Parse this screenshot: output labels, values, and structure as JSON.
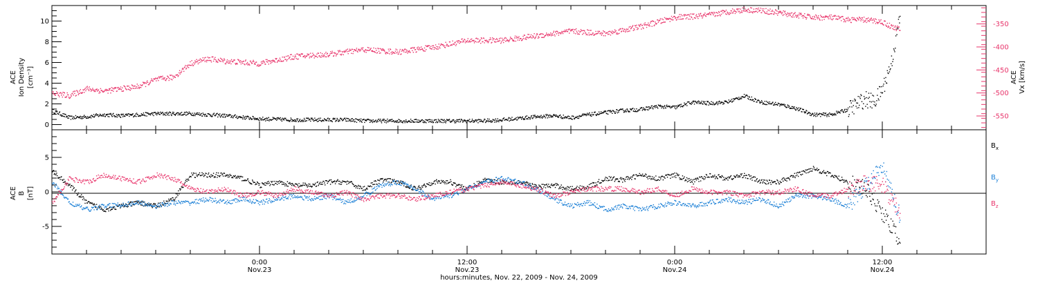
{
  "colors": {
    "axis": "#000000",
    "density": "#000000",
    "velocity": "#e8336a",
    "bx": "#000000",
    "by": "#1a7fd6",
    "bz": "#e8336a"
  },
  "chart_data": [
    {
      "type": "scatter",
      "panel": "top",
      "left_ylabel": [
        "ACE",
        "Ion Density",
        "[cm⁻³]"
      ],
      "right_ylabel": [
        "ACE",
        "Vx [km/s]"
      ],
      "left_yticks": [
        "0",
        "2",
        "4",
        "6",
        "8",
        "10"
      ],
      "right_yticks": [
        "-350",
        "-400",
        "-450",
        "-500",
        "-550"
      ],
      "left_ylim": [
        -0.5,
        11.5
      ],
      "right_ylim": [
        -580,
        -310
      ],
      "series": [
        {
          "axis": "left",
          "color": "#000000",
          "x": [
            0,
            1,
            2,
            3,
            4,
            5,
            6,
            8,
            10,
            12,
            14,
            15,
            16,
            17,
            18,
            19,
            20,
            21,
            22,
            23,
            24,
            25,
            26,
            28,
            29,
            30,
            31,
            32,
            33,
            34,
            35,
            36,
            37,
            38,
            39,
            40,
            41,
            42,
            43,
            44,
            45,
            46,
            47,
            47.5,
            48,
            48.5,
            49
          ],
          "values": [
            1.4,
            0.7,
            0.8,
            1.0,
            0.9,
            1.0,
            1.1,
            1.1,
            0.9,
            0.6,
            0.5,
            0.5,
            0.5,
            0.5,
            0.4,
            0.4,
            0.4,
            0.4,
            0.4,
            0.4,
            0.4,
            0.4,
            0.5,
            0.8,
            0.9,
            0.7,
            1.0,
            1.2,
            1.4,
            1.5,
            1.8,
            1.7,
            2.2,
            2.1,
            2.2,
            2.8,
            2.2,
            2.0,
            1.6,
            1.0,
            1.0,
            1.5,
            2.5,
            2.2,
            3.5,
            6.0,
            10.5
          ]
        },
        {
          "axis": "right",
          "color": "#e8336a",
          "x": [
            0,
            1,
            2,
            3,
            4,
            5,
            6,
            7,
            8,
            9,
            10,
            12,
            14,
            16,
            18,
            20,
            22,
            24,
            26,
            28,
            30,
            32,
            34,
            35,
            36,
            37,
            38,
            39,
            40,
            41,
            42,
            43,
            44,
            45,
            46,
            47,
            48,
            48.5,
            49
          ],
          "values": [
            -500,
            -505,
            -490,
            -495,
            -490,
            -485,
            -470,
            -465,
            -435,
            -425,
            -430,
            -435,
            -420,
            -415,
            -405,
            -410,
            -400,
            -385,
            -385,
            -375,
            -365,
            -370,
            -355,
            -345,
            -335,
            -333,
            -330,
            -323,
            -318,
            -320,
            -325,
            -330,
            -335,
            -335,
            -340,
            -340,
            -345,
            -355,
            -360
          ]
        }
      ]
    },
    {
      "type": "scatter",
      "panel": "bottom",
      "ylabel": [
        "ACE",
        "B",
        "[nT]"
      ],
      "yticks": [
        "-5",
        "0",
        "5"
      ],
      "ylim": [
        -9,
        9
      ],
      "legend": [
        "Bx",
        "By",
        "Bz"
      ],
      "legend_placement": "right",
      "series": [
        {
          "name": "Bx",
          "color": "#000000",
          "x": [
            0,
            1,
            2,
            3,
            4,
            5,
            6,
            7,
            8,
            9,
            10,
            11,
            12,
            13,
            14,
            15,
            16,
            17,
            18,
            19,
            20,
            21,
            22,
            23,
            24,
            25,
            26,
            27,
            28,
            29,
            30,
            31,
            32,
            33,
            34,
            35,
            36,
            37,
            38,
            39,
            40,
            41,
            42,
            43,
            44,
            45,
            46,
            47,
            48,
            49
          ],
          "values": [
            3,
            1,
            -1.5,
            -2.5,
            -2,
            -1.5,
            -2,
            -1,
            2.5,
            2.5,
            2.5,
            2.0,
            1.0,
            1.5,
            1.0,
            1.0,
            1.5,
            1.5,
            0.5,
            1.8,
            1.5,
            0.5,
            1.5,
            1.5,
            0.5,
            1.8,
            1.5,
            1.5,
            0.8,
            1.0,
            0.5,
            0.8,
            2.0,
            1.8,
            2.5,
            2.0,
            2.5,
            1.5,
            2.5,
            2.0,
            2.5,
            1.5,
            1.5,
            2.5,
            3.5,
            2.5,
            1.5,
            0.5,
            -3.0,
            -7.0
          ]
        },
        {
          "name": "By",
          "color": "#1a7fd6",
          "x": [
            0,
            1,
            2,
            3,
            4,
            5,
            6,
            7,
            8,
            9,
            10,
            11,
            12,
            13,
            14,
            15,
            16,
            17,
            18,
            19,
            20,
            21,
            22,
            23,
            24,
            25,
            26,
            27,
            28,
            29,
            30,
            31,
            32,
            33,
            34,
            35,
            36,
            37,
            38,
            39,
            40,
            41,
            42,
            43,
            44,
            45,
            46,
            47,
            48,
            49
          ],
          "values": [
            1.5,
            -1.5,
            -2.5,
            -2.0,
            -1.8,
            -1.5,
            -2.0,
            -1.5,
            -1.5,
            -1.0,
            -1.5,
            -1.0,
            -1.5,
            -1.0,
            -0.5,
            -1.0,
            -0.5,
            -1.5,
            -0.5,
            1.0,
            1.5,
            0.5,
            -1.0,
            -0.5,
            0.5,
            1.5,
            2.0,
            1.5,
            0.5,
            -1.0,
            -2.0,
            -1.5,
            -2.5,
            -2.0,
            -2.5,
            -2.0,
            -1.5,
            -2.0,
            -1.5,
            -1.0,
            -1.5,
            -1.0,
            -2.0,
            -0.5,
            -0.5,
            -1.0,
            -2.0,
            1.0,
            3.5,
            -3.5
          ]
        },
        {
          "name": "Bz",
          "color": "#e8336a",
          "x": [
            0,
            1,
            2,
            3,
            4,
            5,
            6,
            7,
            8,
            9,
            10,
            11,
            12,
            13,
            14,
            15,
            16,
            17,
            18,
            19,
            20,
            21,
            22,
            23,
            24,
            25,
            26,
            27,
            28,
            29,
            30,
            31,
            32,
            33,
            34,
            35,
            36,
            37,
            38,
            39,
            40,
            41,
            42,
            43,
            44,
            45,
            46,
            47,
            48,
            49
          ],
          "values": [
            -1.5,
            2.0,
            1.5,
            2.5,
            2.0,
            1.5,
            2.5,
            2.0,
            0.5,
            0.0,
            0.5,
            -0.5,
            0.0,
            -0.5,
            0.5,
            0.0,
            -0.5,
            0.0,
            -1.0,
            -0.5,
            -0.5,
            -1.0,
            -0.5,
            0.0,
            0.5,
            1.0,
            1.5,
            1.0,
            0.5,
            -0.5,
            0.0,
            0.5,
            0.5,
            0.5,
            0.0,
            0.5,
            -0.5,
            0.5,
            0.0,
            0.0,
            -0.5,
            0.0,
            0.0,
            0.5,
            -0.5,
            -0.5,
            0.5,
            1.5,
            1.0,
            -3.0
          ]
        }
      ]
    }
  ],
  "x_axis": {
    "ticks": [
      {
        "x": 12,
        "label1": "0:00",
        "label2": "Nov.23"
      },
      {
        "x": 24,
        "label1": "12:00",
        "label2": "Nov.23"
      },
      {
        "x": 36,
        "label1": "0:00",
        "label2": "Nov.24"
      },
      {
        "x": 48,
        "label1": "12:00",
        "label2": "Nov.24"
      }
    ],
    "xlim": [
      0,
      54
    ],
    "title": "hours:minutes, Nov. 22, 2009 - Nov. 24, 2009"
  }
}
